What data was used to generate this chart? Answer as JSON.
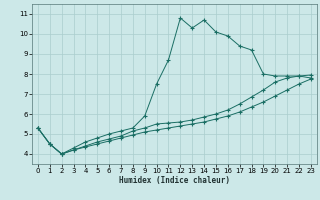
{
  "xlabel": "Humidex (Indice chaleur)",
  "background_color": "#cce8e8",
  "grid_color": "#aacece",
  "line_color": "#1a6e64",
  "xlim": [
    -0.5,
    23.5
  ],
  "ylim": [
    3.5,
    11.5
  ],
  "xticks": [
    0,
    1,
    2,
    3,
    4,
    5,
    6,
    7,
    8,
    9,
    10,
    11,
    12,
    13,
    14,
    15,
    16,
    17,
    18,
    19,
    20,
    21,
    22,
    23
  ],
  "yticks": [
    4,
    5,
    6,
    7,
    8,
    9,
    10,
    11
  ],
  "line1_x": [
    0,
    1,
    2,
    3,
    4,
    5,
    6,
    7,
    8,
    9,
    10,
    11,
    12,
    13,
    14,
    15,
    16,
    17,
    18,
    19,
    20,
    21,
    22,
    23
  ],
  "line1_y": [
    5.3,
    4.5,
    4.0,
    4.3,
    4.6,
    4.8,
    5.0,
    5.15,
    5.3,
    5.9,
    7.5,
    8.7,
    10.8,
    10.3,
    10.7,
    10.1,
    9.9,
    9.4,
    9.2,
    8.0,
    7.9,
    7.9,
    7.9,
    7.8
  ],
  "line2_x": [
    0,
    1,
    2,
    3,
    4,
    5,
    6,
    7,
    8,
    9,
    10,
    11,
    12,
    13,
    14,
    15,
    16,
    17,
    18,
    19,
    20,
    21,
    22,
    23
  ],
  "line2_y": [
    5.3,
    4.5,
    4.0,
    4.2,
    4.4,
    4.6,
    4.75,
    4.9,
    5.15,
    5.3,
    5.5,
    5.55,
    5.6,
    5.7,
    5.85,
    6.0,
    6.2,
    6.5,
    6.85,
    7.2,
    7.6,
    7.8,
    7.9,
    7.95
  ],
  "line3_x": [
    0,
    1,
    2,
    3,
    4,
    5,
    6,
    7,
    8,
    9,
    10,
    11,
    12,
    13,
    14,
    15,
    16,
    17,
    18,
    19,
    20,
    21,
    22,
    23
  ],
  "line3_y": [
    5.3,
    4.5,
    4.0,
    4.2,
    4.35,
    4.5,
    4.65,
    4.8,
    4.95,
    5.1,
    5.2,
    5.3,
    5.4,
    5.5,
    5.6,
    5.75,
    5.9,
    6.1,
    6.35,
    6.6,
    6.9,
    7.2,
    7.5,
    7.75
  ]
}
